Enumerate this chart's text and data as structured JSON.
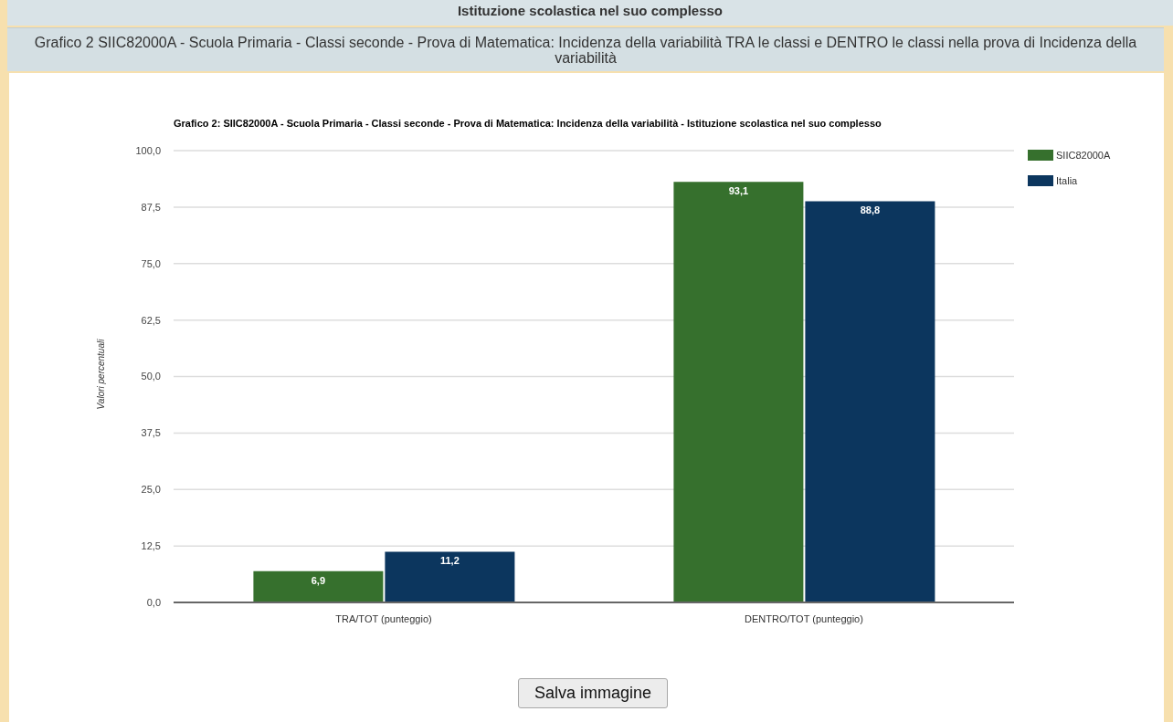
{
  "chart_data": {
    "type": "bar",
    "title": "Grafico 2: SIIC82000A - Scuola Primaria - Classi seconde - Prova di Matematica: Incidenza della variabilità - Istituzione scolastica nel suo complesso",
    "subtitle": "Grafico 2 SIIC82000A - Scuola Primaria - Classi seconde - Prova di Matematica: Incidenza della variabilità TRA le classi e DENTRO le classi nella prova di Incidenza della variabilità",
    "ylabel": "Valori percentuali",
    "annotations": [
      "Istituzione scolastica nel suo complesso",
      "Salva immagine"
    ],
    "categories": [
      "TRA/TOT (punteggio)",
      "DENTRO/TOT (punteggio)"
    ],
    "series": [
      {
        "name": "SIIC82000A",
        "color": "#36702d",
        "values": [
          6.9,
          93.1
        ],
        "value_labels": [
          "6,9",
          "93,1"
        ]
      },
      {
        "name": "Italia",
        "color": "#0c365e",
        "values": [
          11.2,
          88.8
        ],
        "value_labels": [
          "11,2",
          "88,8"
        ]
      }
    ],
    "ylim": [
      0,
      100
    ],
    "yticks": [
      {
        "value": 0,
        "label": "0,0"
      },
      {
        "value": 12.5,
        "label": "12,5"
      },
      {
        "value": 25,
        "label": "25,0"
      },
      {
        "value": 37.5,
        "label": "37,5"
      },
      {
        "value": 50,
        "label": "50,0"
      },
      {
        "value": 62.5,
        "label": "62,5"
      },
      {
        "value": 75,
        "label": "75,0"
      },
      {
        "value": 87.5,
        "label": "87,5"
      },
      {
        "value": 100,
        "label": "100,0"
      }
    ],
    "grid": "y",
    "legend": "top right"
  }
}
